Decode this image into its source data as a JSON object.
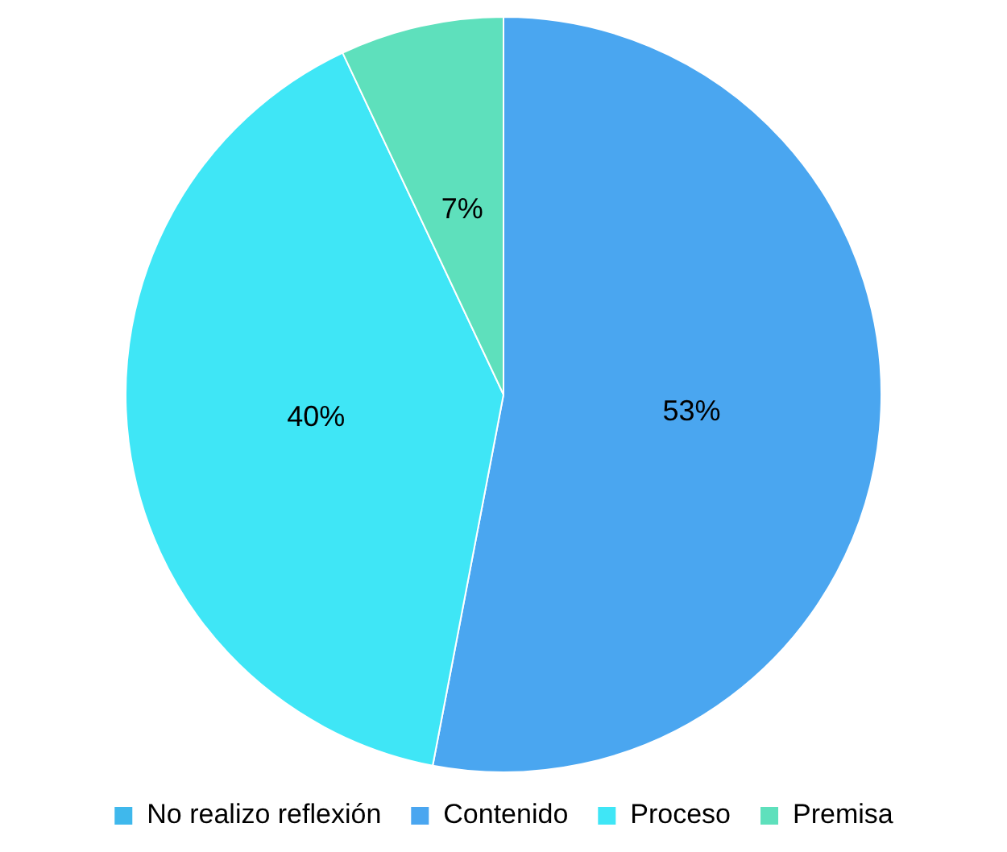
{
  "chart_data": {
    "type": "pie",
    "categories": [
      "No realizo reflexión",
      "Contenido",
      "Proceso",
      "Premisa"
    ],
    "values": [
      0,
      53,
      40,
      7
    ],
    "colors": [
      "#3fb8ec",
      "#4aa6f0",
      "#3fe6f6",
      "#5ee0bc"
    ],
    "value_labels": [
      null,
      "53%",
      "40%",
      "7%"
    ],
    "legend": "bottom"
  }
}
